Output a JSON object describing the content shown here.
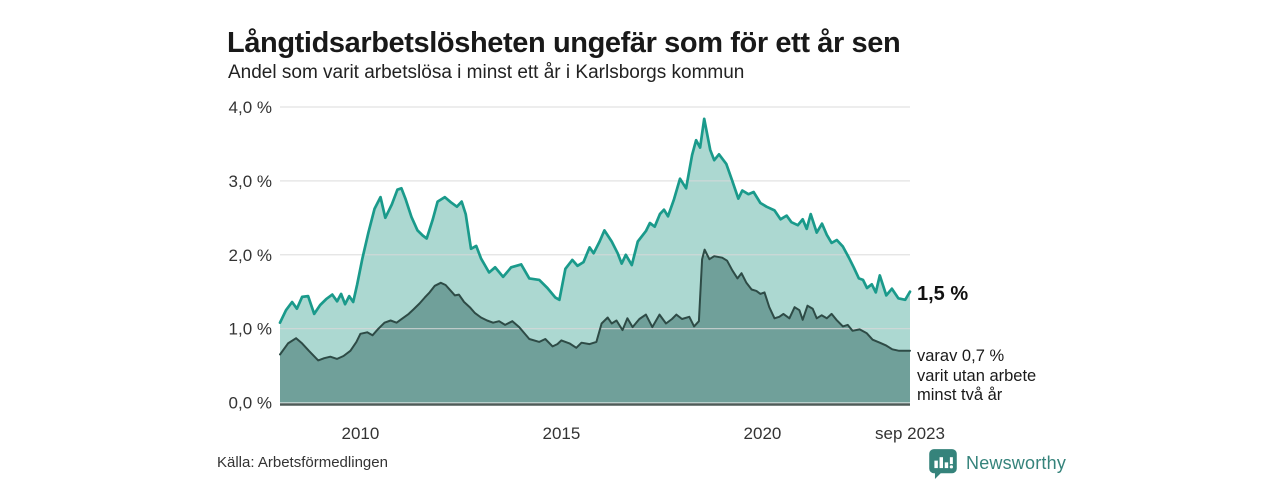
{
  "header": {
    "title": "Långtidsarbetslösheten ungefär som för ett år sen",
    "subtitle": "Andel som varit arbetslösa i minst ett år i Karlsborgs kommun"
  },
  "chart_data": {
    "type": "area",
    "title": "Långtidsarbetslösheten ungefär som för ett år sen",
    "subtitle": "Andel som varit arbetslösa i minst ett år i Karlsborgs kommun",
    "x_axis": {
      "range": [
        2008,
        2023.67
      ],
      "ticks": [
        {
          "value": 2010,
          "label": "2010"
        },
        {
          "value": 2015,
          "label": "2015"
        },
        {
          "value": 2020,
          "label": "2020"
        },
        {
          "value": 2023.67,
          "label": "sep 2023"
        }
      ]
    },
    "y_axis": {
      "range": [
        0,
        4
      ],
      "ticks": [
        {
          "value": 0,
          "label": "0,0 %"
        },
        {
          "value": 1,
          "label": "1,0 %"
        },
        {
          "value": 2,
          "label": "2,0 %"
        },
        {
          "value": 3,
          "label": "3,0 %"
        },
        {
          "value": 4,
          "label": "4,0 %"
        }
      ]
    },
    "colors": {
      "grid": "#d9d9d9",
      "baseline": "#4e5b58"
    },
    "series": [
      {
        "name": "Andel arbetslösa minst ett år",
        "stroke": "#1a9a8b",
        "fill": "#acd8d1",
        "end_value_label": "1,5 %",
        "points": [
          [
            2008.0,
            1.08
          ],
          [
            2008.15,
            1.25
          ],
          [
            2008.3,
            1.36
          ],
          [
            2008.42,
            1.27
          ],
          [
            2008.55,
            1.43
          ],
          [
            2008.7,
            1.44
          ],
          [
            2008.85,
            1.2
          ],
          [
            2009.0,
            1.32
          ],
          [
            2009.15,
            1.4
          ],
          [
            2009.3,
            1.46
          ],
          [
            2009.42,
            1.37
          ],
          [
            2009.52,
            1.47
          ],
          [
            2009.62,
            1.33
          ],
          [
            2009.72,
            1.44
          ],
          [
            2009.82,
            1.36
          ],
          [
            2009.92,
            1.6
          ],
          [
            2010.05,
            1.95
          ],
          [
            2010.2,
            2.3
          ],
          [
            2010.35,
            2.62
          ],
          [
            2010.5,
            2.78
          ],
          [
            2010.62,
            2.5
          ],
          [
            2010.78,
            2.68
          ],
          [
            2010.92,
            2.88
          ],
          [
            2011.02,
            2.9
          ],
          [
            2011.12,
            2.76
          ],
          [
            2011.27,
            2.51
          ],
          [
            2011.42,
            2.33
          ],
          [
            2011.55,
            2.26
          ],
          [
            2011.65,
            2.22
          ],
          [
            2011.8,
            2.48
          ],
          [
            2011.92,
            2.72
          ],
          [
            2012.1,
            2.78
          ],
          [
            2012.25,
            2.71
          ],
          [
            2012.4,
            2.65
          ],
          [
            2012.52,
            2.72
          ],
          [
            2012.62,
            2.55
          ],
          [
            2012.75,
            2.08
          ],
          [
            2012.88,
            2.12
          ],
          [
            2013.0,
            1.95
          ],
          [
            2013.2,
            1.76
          ],
          [
            2013.35,
            1.83
          ],
          [
            2013.55,
            1.7
          ],
          [
            2013.75,
            1.83
          ],
          [
            2014.0,
            1.87
          ],
          [
            2014.2,
            1.68
          ],
          [
            2014.45,
            1.66
          ],
          [
            2014.65,
            1.55
          ],
          [
            2014.85,
            1.42
          ],
          [
            2014.95,
            1.39
          ],
          [
            2015.1,
            1.81
          ],
          [
            2015.27,
            1.93
          ],
          [
            2015.4,
            1.85
          ],
          [
            2015.55,
            1.9
          ],
          [
            2015.7,
            2.1
          ],
          [
            2015.8,
            2.02
          ],
          [
            2015.95,
            2.18
          ],
          [
            2016.07,
            2.33
          ],
          [
            2016.25,
            2.18
          ],
          [
            2016.4,
            2.02
          ],
          [
            2016.5,
            1.88
          ],
          [
            2016.6,
            2.0
          ],
          [
            2016.75,
            1.86
          ],
          [
            2016.9,
            2.18
          ],
          [
            2017.1,
            2.32
          ],
          [
            2017.2,
            2.43
          ],
          [
            2017.32,
            2.38
          ],
          [
            2017.45,
            2.55
          ],
          [
            2017.55,
            2.61
          ],
          [
            2017.65,
            2.52
          ],
          [
            2017.8,
            2.75
          ],
          [
            2017.95,
            3.03
          ],
          [
            2018.1,
            2.9
          ],
          [
            2018.25,
            3.35
          ],
          [
            2018.35,
            3.55
          ],
          [
            2018.45,
            3.45
          ],
          [
            2018.55,
            3.84
          ],
          [
            2018.7,
            3.42
          ],
          [
            2018.8,
            3.28
          ],
          [
            2018.92,
            3.36
          ],
          [
            2019.1,
            3.23
          ],
          [
            2019.25,
            3.0
          ],
          [
            2019.4,
            2.76
          ],
          [
            2019.5,
            2.87
          ],
          [
            2019.65,
            2.82
          ],
          [
            2019.78,
            2.85
          ],
          [
            2019.95,
            2.7
          ],
          [
            2020.1,
            2.65
          ],
          [
            2020.3,
            2.6
          ],
          [
            2020.45,
            2.48
          ],
          [
            2020.6,
            2.53
          ],
          [
            2020.72,
            2.44
          ],
          [
            2020.88,
            2.4
          ],
          [
            2021.0,
            2.48
          ],
          [
            2021.1,
            2.35
          ],
          [
            2021.2,
            2.55
          ],
          [
            2021.35,
            2.3
          ],
          [
            2021.48,
            2.42
          ],
          [
            2021.6,
            2.27
          ],
          [
            2021.72,
            2.16
          ],
          [
            2021.85,
            2.2
          ],
          [
            2022.0,
            2.11
          ],
          [
            2022.15,
            1.96
          ],
          [
            2022.27,
            1.83
          ],
          [
            2022.4,
            1.68
          ],
          [
            2022.5,
            1.66
          ],
          [
            2022.6,
            1.55
          ],
          [
            2022.72,
            1.6
          ],
          [
            2022.82,
            1.49
          ],
          [
            2022.92,
            1.72
          ],
          [
            2023.08,
            1.45
          ],
          [
            2023.22,
            1.54
          ],
          [
            2023.38,
            1.41
          ],
          [
            2023.55,
            1.39
          ],
          [
            2023.67,
            1.5
          ]
        ]
      },
      {
        "name": "Varav utan arbete minst två år",
        "stroke": "#2e4b46",
        "fill": "#70a09a",
        "end_value_label": "0,7 %",
        "points": [
          [
            2008.0,
            0.65
          ],
          [
            2008.2,
            0.8
          ],
          [
            2008.4,
            0.87
          ],
          [
            2008.55,
            0.8
          ],
          [
            2008.72,
            0.7
          ],
          [
            2008.95,
            0.57
          ],
          [
            2009.1,
            0.6
          ],
          [
            2009.25,
            0.62
          ],
          [
            2009.42,
            0.59
          ],
          [
            2009.58,
            0.63
          ],
          [
            2009.75,
            0.7
          ],
          [
            2009.9,
            0.82
          ],
          [
            2010.0,
            0.93
          ],
          [
            2010.17,
            0.95
          ],
          [
            2010.3,
            0.91
          ],
          [
            2010.45,
            1.0
          ],
          [
            2010.6,
            1.08
          ],
          [
            2010.75,
            1.11
          ],
          [
            2010.9,
            1.08
          ],
          [
            2011.05,
            1.14
          ],
          [
            2011.2,
            1.2
          ],
          [
            2011.32,
            1.26
          ],
          [
            2011.47,
            1.34
          ],
          [
            2011.6,
            1.42
          ],
          [
            2011.72,
            1.49
          ],
          [
            2011.85,
            1.58
          ],
          [
            2012.0,
            1.62
          ],
          [
            2012.12,
            1.59
          ],
          [
            2012.25,
            1.51
          ],
          [
            2012.35,
            1.45
          ],
          [
            2012.45,
            1.46
          ],
          [
            2012.58,
            1.36
          ],
          [
            2012.72,
            1.29
          ],
          [
            2012.85,
            1.21
          ],
          [
            2013.0,
            1.15
          ],
          [
            2013.15,
            1.11
          ],
          [
            2013.3,
            1.08
          ],
          [
            2013.45,
            1.1
          ],
          [
            2013.6,
            1.05
          ],
          [
            2013.78,
            1.1
          ],
          [
            2013.95,
            1.02
          ],
          [
            2014.2,
            0.86
          ],
          [
            2014.45,
            0.82
          ],
          [
            2014.6,
            0.86
          ],
          [
            2014.78,
            0.76
          ],
          [
            2014.9,
            0.79
          ],
          [
            2015.0,
            0.84
          ],
          [
            2015.2,
            0.8
          ],
          [
            2015.37,
            0.74
          ],
          [
            2015.5,
            0.81
          ],
          [
            2015.7,
            0.79
          ],
          [
            2015.87,
            0.82
          ],
          [
            2016.0,
            1.07
          ],
          [
            2016.15,
            1.15
          ],
          [
            2016.25,
            1.07
          ],
          [
            2016.37,
            1.11
          ],
          [
            2016.52,
            0.98
          ],
          [
            2016.64,
            1.14
          ],
          [
            2016.77,
            1.02
          ],
          [
            2016.94,
            1.13
          ],
          [
            2017.1,
            1.19
          ],
          [
            2017.26,
            1.02
          ],
          [
            2017.44,
            1.19
          ],
          [
            2017.6,
            1.07
          ],
          [
            2017.75,
            1.13
          ],
          [
            2017.86,
            1.19
          ],
          [
            2018.0,
            1.13
          ],
          [
            2018.18,
            1.16
          ],
          [
            2018.3,
            1.03
          ],
          [
            2018.42,
            1.1
          ],
          [
            2018.5,
            1.94
          ],
          [
            2018.56,
            2.07
          ],
          [
            2018.68,
            1.94
          ],
          [
            2018.8,
            1.98
          ],
          [
            2019.0,
            1.96
          ],
          [
            2019.12,
            1.92
          ],
          [
            2019.25,
            1.79
          ],
          [
            2019.38,
            1.68
          ],
          [
            2019.48,
            1.75
          ],
          [
            2019.6,
            1.62
          ],
          [
            2019.73,
            1.53
          ],
          [
            2019.85,
            1.51
          ],
          [
            2019.95,
            1.47
          ],
          [
            2020.05,
            1.49
          ],
          [
            2020.17,
            1.29
          ],
          [
            2020.3,
            1.14
          ],
          [
            2020.42,
            1.16
          ],
          [
            2020.52,
            1.2
          ],
          [
            2020.67,
            1.14
          ],
          [
            2020.8,
            1.29
          ],
          [
            2020.92,
            1.25
          ],
          [
            2021.0,
            1.12
          ],
          [
            2021.12,
            1.31
          ],
          [
            2021.25,
            1.27
          ],
          [
            2021.35,
            1.14
          ],
          [
            2021.47,
            1.18
          ],
          [
            2021.6,
            1.14
          ],
          [
            2021.72,
            1.2
          ],
          [
            2021.84,
            1.12
          ],
          [
            2022.0,
            1.03
          ],
          [
            2022.12,
            1.05
          ],
          [
            2022.24,
            0.97
          ],
          [
            2022.42,
            0.99
          ],
          [
            2022.59,
            0.94
          ],
          [
            2022.74,
            0.85
          ],
          [
            2022.92,
            0.81
          ],
          [
            2023.08,
            0.77
          ],
          [
            2023.23,
            0.72
          ],
          [
            2023.4,
            0.7
          ],
          [
            2023.67,
            0.7
          ]
        ]
      }
    ],
    "end_labels": {
      "primary": "1,5 %",
      "secondary": [
        "varav 0,7 %",
        "varit utan arbete",
        "minst två år"
      ]
    },
    "legend_position": "right-annotations",
    "grid": true
  },
  "footer": {
    "source": "Källa: Arbetsförmedlingen",
    "brand": "Newsworthy"
  }
}
